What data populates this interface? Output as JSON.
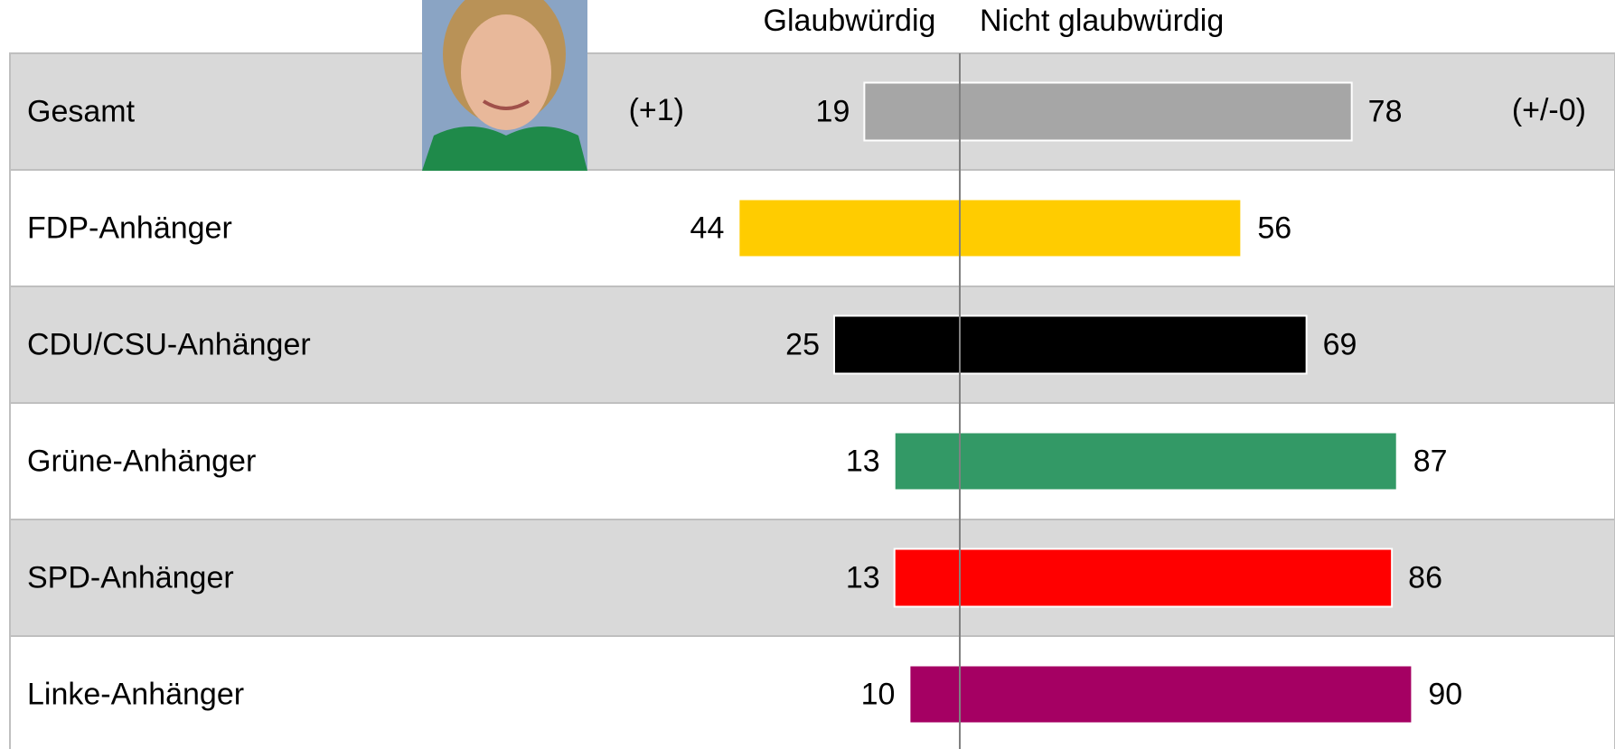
{
  "chart_data": {
    "type": "diverging-bar",
    "categories": [
      "Gesamt",
      "FDP-Anhänger",
      "CDU/CSU-Anhänger",
      "Grüne-Anhänger",
      "SPD-Anhänger",
      "Linke-Anhänger"
    ],
    "colors": [
      "#a6a6a6",
      "#ffcc00",
      "#000000",
      "#339966",
      "#ff0000",
      "#a50063"
    ],
    "series": [
      {
        "name": "Glaubwürdig",
        "values": [
          19,
          44,
          25,
          13,
          13,
          10
        ]
      },
      {
        "name": "Nicht glaubwürdig",
        "values": [
          78,
          56,
          69,
          87,
          86,
          90
        ]
      }
    ],
    "annotations": [
      "(+1)",
      "(+/-0)"
    ]
  }
}
